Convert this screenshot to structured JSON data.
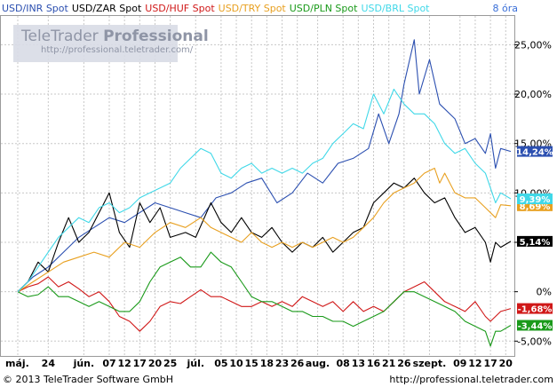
{
  "header": {
    "legend": [
      {
        "label": "USD/INR Spot",
        "color": "#2b4fb0"
      },
      {
        "label": "USD/ZAR Spot",
        "color": "#000000"
      },
      {
        "label": "USD/HUF Spot",
        "color": "#d01818"
      },
      {
        "label": "USD/TRY Spot",
        "color": "#e8a020"
      },
      {
        "label": "USD/PLN Spot",
        "color": "#1a9a1a"
      },
      {
        "label": "USD/BRL Spot",
        "color": "#40d8e8"
      }
    ],
    "interval": "8 óra"
  },
  "watermark": {
    "brand": "TeleTrader",
    "product": "Professional",
    "url": "http://professional.teletrader.com/"
  },
  "footer": {
    "copyright": "© 2013 TeleTrader Software GmbH",
    "url": "http://professional.teletrader.com"
  },
  "chart_data": {
    "type": "line",
    "ylim": [
      -6.5,
      28
    ],
    "y_ticks": [
      25,
      20,
      15,
      10,
      5,
      0,
      -5
    ],
    "y_tick_labels": [
      "25,00%",
      "20,00%",
      "15,00%",
      "10,00%",
      "5,00%",
      "0%",
      "-5,00%"
    ],
    "x_labels": [
      {
        "t": 0,
        "label": "máj."
      },
      {
        "t": 6,
        "label": "24"
      },
      {
        "t": 13,
        "label": "jún."
      },
      {
        "t": 18,
        "label": "07"
      },
      {
        "t": 21,
        "label": "12"
      },
      {
        "t": 24,
        "label": "17"
      },
      {
        "t": 27,
        "label": "20"
      },
      {
        "t": 30,
        "label": "25"
      },
      {
        "t": 35,
        "label": "júl."
      },
      {
        "t": 40,
        "label": "05"
      },
      {
        "t": 43,
        "label": "10"
      },
      {
        "t": 46,
        "label": "15"
      },
      {
        "t": 49,
        "label": "18"
      },
      {
        "t": 52,
        "label": "23"
      },
      {
        "t": 55,
        "label": "26"
      },
      {
        "t": 59,
        "label": "aug."
      },
      {
        "t": 64,
        "label": "08"
      },
      {
        "t": 67,
        "label": "13"
      },
      {
        "t": 70,
        "label": "16"
      },
      {
        "t": 73,
        "label": "21"
      },
      {
        "t": 76,
        "label": "26"
      },
      {
        "t": 81,
        "label": "szept."
      },
      {
        "t": 87,
        "label": "09"
      },
      {
        "t": 90,
        "label": "12"
      },
      {
        "t": 93,
        "label": "17"
      },
      {
        "t": 96,
        "label": "20"
      }
    ],
    "series": [
      {
        "name": "USD/INR Spot",
        "color": "#2b4fb0",
        "last_label": "14,24%",
        "points": [
          [
            0,
            0
          ],
          [
            3,
            1.5
          ],
          [
            6,
            2.5
          ],
          [
            9,
            4
          ],
          [
            12,
            5.5
          ],
          [
            15,
            6.5
          ],
          [
            18,
            7.5
          ],
          [
            21,
            7
          ],
          [
            24,
            8
          ],
          [
            27,
            9
          ],
          [
            30,
            8.5
          ],
          [
            33,
            8
          ],
          [
            36,
            7.5
          ],
          [
            39,
            9.5
          ],
          [
            42,
            10
          ],
          [
            45,
            11
          ],
          [
            48,
            11.5
          ],
          [
            51,
            9
          ],
          [
            54,
            10
          ],
          [
            57,
            12
          ],
          [
            60,
            11
          ],
          [
            63,
            13
          ],
          [
            66,
            13.5
          ],
          [
            69,
            14.5
          ],
          [
            71,
            18
          ],
          [
            73,
            15
          ],
          [
            75,
            18
          ],
          [
            76,
            21
          ],
          [
            78,
            25.5
          ],
          [
            79,
            20
          ],
          [
            81,
            23.5
          ],
          [
            83,
            19
          ],
          [
            86,
            17.5
          ],
          [
            88,
            15
          ],
          [
            90,
            15.5
          ],
          [
            92,
            14
          ],
          [
            93,
            16
          ],
          [
            94,
            12.5
          ],
          [
            95,
            14.5
          ],
          [
            97,
            14.2
          ]
        ]
      },
      {
        "name": "USD/ZAR Spot",
        "color": "#000000",
        "last_label": "5,14%",
        "points": [
          [
            0,
            0
          ],
          [
            2,
            1
          ],
          [
            4,
            3
          ],
          [
            6,
            2
          ],
          [
            8,
            5
          ],
          [
            10,
            7.5
          ],
          [
            12,
            5
          ],
          [
            14,
            6
          ],
          [
            16,
            8
          ],
          [
            18,
            10
          ],
          [
            20,
            6
          ],
          [
            22,
            4.5
          ],
          [
            24,
            9
          ],
          [
            26,
            7
          ],
          [
            28,
            8.5
          ],
          [
            30,
            5.5
          ],
          [
            33,
            6
          ],
          [
            35,
            5.5
          ],
          [
            38,
            9
          ],
          [
            40,
            7
          ],
          [
            42,
            6
          ],
          [
            44,
            7.5
          ],
          [
            46,
            6
          ],
          [
            48,
            5.5
          ],
          [
            50,
            6.5
          ],
          [
            52,
            5
          ],
          [
            54,
            4
          ],
          [
            56,
            5
          ],
          [
            58,
            4.5
          ],
          [
            60,
            5.5
          ],
          [
            62,
            4
          ],
          [
            64,
            5
          ],
          [
            66,
            6
          ],
          [
            68,
            6.5
          ],
          [
            70,
            9
          ],
          [
            72,
            10
          ],
          [
            74,
            11
          ],
          [
            76,
            10.5
          ],
          [
            78,
            11.5
          ],
          [
            80,
            10
          ],
          [
            82,
            9
          ],
          [
            84,
            9.5
          ],
          [
            86,
            7.5
          ],
          [
            88,
            6
          ],
          [
            90,
            6.5
          ],
          [
            92,
            5
          ],
          [
            93,
            3
          ],
          [
            94,
            5
          ],
          [
            95,
            4.5
          ],
          [
            97,
            5.1
          ]
        ]
      },
      {
        "name": "USD/HUF Spot",
        "color": "#d01818",
        "last_label": "-1,68%",
        "points": [
          [
            0,
            0
          ],
          [
            2,
            0.5
          ],
          [
            4,
            0.8
          ],
          [
            6,
            1.5
          ],
          [
            8,
            0.5
          ],
          [
            10,
            1
          ],
          [
            12,
            0.3
          ],
          [
            14,
            -0.5
          ],
          [
            16,
            0
          ],
          [
            18,
            -1
          ],
          [
            20,
            -2.5
          ],
          [
            22,
            -3
          ],
          [
            24,
            -4
          ],
          [
            26,
            -3
          ],
          [
            28,
            -1.5
          ],
          [
            30,
            -1
          ],
          [
            32,
            -1.2
          ],
          [
            34,
            -0.5
          ],
          [
            36,
            0.2
          ],
          [
            38,
            -0.5
          ],
          [
            40,
            -0.5
          ],
          [
            42,
            -1
          ],
          [
            44,
            -1.5
          ],
          [
            46,
            -1.5
          ],
          [
            48,
            -1
          ],
          [
            50,
            -1.5
          ],
          [
            52,
            -1
          ],
          [
            54,
            -1.5
          ],
          [
            56,
            -0.5
          ],
          [
            58,
            -1
          ],
          [
            60,
            -1.5
          ],
          [
            62,
            -1
          ],
          [
            64,
            -2
          ],
          [
            66,
            -1
          ],
          [
            68,
            -2
          ],
          [
            70,
            -1.5
          ],
          [
            72,
            -2
          ],
          [
            74,
            -1
          ],
          [
            76,
            0
          ],
          [
            78,
            0.5
          ],
          [
            80,
            1
          ],
          [
            82,
            0
          ],
          [
            84,
            -1
          ],
          [
            86,
            -1.5
          ],
          [
            88,
            -2
          ],
          [
            90,
            -1
          ],
          [
            92,
            -2.5
          ],
          [
            93,
            -3
          ],
          [
            94,
            -2.5
          ],
          [
            95,
            -2
          ],
          [
            97,
            -1.7
          ]
        ]
      },
      {
        "name": "USD/TRY Spot",
        "color": "#e8a020",
        "last_label": "8,69%",
        "points": [
          [
            0,
            0
          ],
          [
            3,
            1
          ],
          [
            6,
            2
          ],
          [
            9,
            3
          ],
          [
            12,
            3.5
          ],
          [
            15,
            4
          ],
          [
            18,
            3.5
          ],
          [
            21,
            5
          ],
          [
            24,
            4.5
          ],
          [
            27,
            6
          ],
          [
            30,
            7
          ],
          [
            33,
            6.5
          ],
          [
            36,
            7.5
          ],
          [
            38,
            6.5
          ],
          [
            40,
            6
          ],
          [
            42,
            5.5
          ],
          [
            44,
            5
          ],
          [
            46,
            6
          ],
          [
            48,
            5
          ],
          [
            50,
            4.5
          ],
          [
            52,
            5
          ],
          [
            54,
            4.5
          ],
          [
            56,
            5
          ],
          [
            58,
            4.5
          ],
          [
            60,
            5
          ],
          [
            62,
            5.5
          ],
          [
            64,
            5
          ],
          [
            66,
            5.5
          ],
          [
            68,
            6.5
          ],
          [
            70,
            7.5
          ],
          [
            72,
            9
          ],
          [
            74,
            10
          ],
          [
            76,
            10.5
          ],
          [
            78,
            11
          ],
          [
            80,
            12
          ],
          [
            82,
            12.5
          ],
          [
            83,
            11
          ],
          [
            84,
            12
          ],
          [
            86,
            10
          ],
          [
            88,
            9.5
          ],
          [
            90,
            9.5
          ],
          [
            92,
            8.5
          ],
          [
            94,
            7.5
          ],
          [
            95,
            8.8
          ],
          [
            97,
            8.7
          ]
        ]
      },
      {
        "name": "USD/PLN Spot",
        "color": "#1a9a1a",
        "last_label": "-3,44%",
        "points": [
          [
            0,
            0
          ],
          [
            2,
            -0.5
          ],
          [
            4,
            -0.3
          ],
          [
            6,
            0.5
          ],
          [
            8,
            -0.5
          ],
          [
            10,
            -0.5
          ],
          [
            12,
            -1
          ],
          [
            14,
            -1.5
          ],
          [
            16,
            -1
          ],
          [
            18,
            -1.5
          ],
          [
            20,
            -2
          ],
          [
            22,
            -2
          ],
          [
            24,
            -1
          ],
          [
            26,
            1
          ],
          [
            28,
            2.5
          ],
          [
            30,
            3
          ],
          [
            32,
            3.5
          ],
          [
            34,
            2.5
          ],
          [
            36,
            2.5
          ],
          [
            38,
            4
          ],
          [
            40,
            3
          ],
          [
            42,
            2.5
          ],
          [
            44,
            1
          ],
          [
            46,
            -0.5
          ],
          [
            48,
            -1
          ],
          [
            50,
            -1
          ],
          [
            52,
            -1.5
          ],
          [
            54,
            -2
          ],
          [
            56,
            -2
          ],
          [
            58,
            -2.5
          ],
          [
            60,
            -2.5
          ],
          [
            62,
            -3
          ],
          [
            64,
            -3
          ],
          [
            66,
            -3.5
          ],
          [
            68,
            -3
          ],
          [
            70,
            -2.5
          ],
          [
            72,
            -2
          ],
          [
            74,
            -1
          ],
          [
            76,
            0
          ],
          [
            78,
            0
          ],
          [
            80,
            -0.5
          ],
          [
            82,
            -1
          ],
          [
            84,
            -1.5
          ],
          [
            86,
            -2
          ],
          [
            88,
            -3
          ],
          [
            90,
            -3.5
          ],
          [
            92,
            -4
          ],
          [
            93,
            -5.5
          ],
          [
            94,
            -4
          ],
          [
            95,
            -4
          ],
          [
            97,
            -3.4
          ]
        ]
      },
      {
        "name": "USD/BRL Spot",
        "color": "#40d8e8",
        "last_label": "9,39%",
        "points": [
          [
            0,
            0
          ],
          [
            2,
            1
          ],
          [
            4,
            2.5
          ],
          [
            6,
            4
          ],
          [
            8,
            5.5
          ],
          [
            10,
            6.5
          ],
          [
            12,
            7.5
          ],
          [
            14,
            7
          ],
          [
            16,
            8.5
          ],
          [
            18,
            9
          ],
          [
            20,
            8
          ],
          [
            22,
            8.5
          ],
          [
            24,
            9.5
          ],
          [
            26,
            10
          ],
          [
            28,
            10.5
          ],
          [
            30,
            11
          ],
          [
            32,
            12.5
          ],
          [
            34,
            13.5
          ],
          [
            36,
            14.5
          ],
          [
            38,
            14
          ],
          [
            40,
            12
          ],
          [
            42,
            11.5
          ],
          [
            44,
            12.5
          ],
          [
            46,
            13
          ],
          [
            48,
            12
          ],
          [
            50,
            12.5
          ],
          [
            52,
            12
          ],
          [
            54,
            12.5
          ],
          [
            56,
            12
          ],
          [
            58,
            13
          ],
          [
            60,
            13.5
          ],
          [
            62,
            15
          ],
          [
            64,
            16
          ],
          [
            66,
            17
          ],
          [
            68,
            16.5
          ],
          [
            70,
            20
          ],
          [
            72,
            18
          ],
          [
            74,
            20.5
          ],
          [
            76,
            19
          ],
          [
            78,
            18
          ],
          [
            80,
            18
          ],
          [
            82,
            17
          ],
          [
            84,
            15
          ],
          [
            86,
            14
          ],
          [
            88,
            14.5
          ],
          [
            90,
            13
          ],
          [
            92,
            12
          ],
          [
            94,
            9
          ],
          [
            95,
            10
          ],
          [
            97,
            9.4
          ]
        ]
      }
    ]
  }
}
